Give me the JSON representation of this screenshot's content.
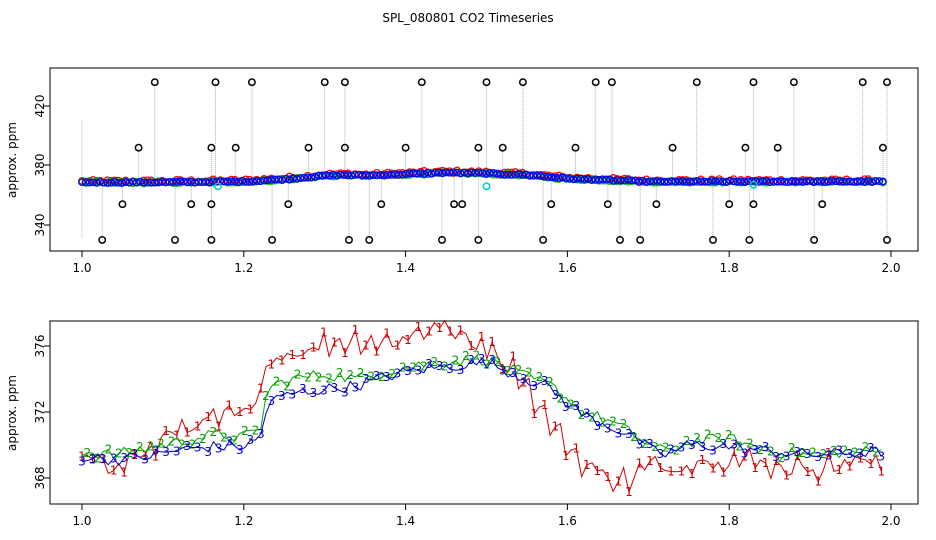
{
  "title": "SPL_080801  CO2 Timeseries",
  "chart_data": [
    {
      "type": "scatter",
      "panel": "top",
      "title": "",
      "xlabel": "",
      "ylabel": "approx. ppm",
      "xlim": [
        1.0,
        2.0
      ],
      "ylim": [
        330,
        436
      ],
      "xticks": [
        "1.0",
        "1.2",
        "1.4",
        "1.6",
        "1.8",
        "2.0"
      ],
      "yticks": [
        "340",
        "380",
        "420"
      ],
      "colors": {
        "base": "#ff0000",
        "mid": "#00c000",
        "top": "#0000ff",
        "spike": "#000000",
        "vline": "#b0b0b0",
        "gap": "#00cccc"
      },
      "baseline": {
        "x": [
          1.0,
          1.1,
          1.2,
          1.25,
          1.3,
          1.33,
          1.35,
          1.4,
          1.45,
          1.5,
          1.52,
          1.55,
          1.6,
          1.65,
          1.7,
          1.75,
          1.8,
          1.85,
          1.9,
          1.95,
          1.99
        ],
        "y": [
          368.5,
          368.5,
          369,
          370.5,
          373,
          373.5,
          373,
          374,
          375,
          374.5,
          374,
          373.5,
          371,
          370,
          369,
          369,
          369,
          369,
          369,
          369,
          369
        ]
      },
      "spikes_high": [
        1.09,
        1.165,
        1.21,
        1.3,
        1.325,
        1.42,
        1.5,
        1.545,
        1.635,
        1.655,
        1.76,
        1.83,
        1.88,
        1.965,
        1.995
      ],
      "spikes_mid": [
        1.07,
        1.16,
        1.19,
        1.28,
        1.325,
        1.4,
        1.49,
        1.52,
        1.61,
        1.73,
        1.82,
        1.86,
        1.99
      ],
      "spikes_low": [
        1.05,
        1.135,
        1.16,
        1.255,
        1.37,
        1.46,
        1.47,
        1.58,
        1.65,
        1.71,
        1.8,
        1.83,
        1.915
      ],
      "spikes_bottom": [
        1.025,
        1.115,
        1.16,
        1.235,
        1.33,
        1.355,
        1.445,
        1.49,
        1.57,
        1.665,
        1.69,
        1.78,
        1.825,
        1.905,
        1.995
      ],
      "gap_points": [
        [
          1.168,
          366
        ],
        [
          1.5,
          366
        ],
        [
          1.83,
          367
        ]
      ]
    },
    {
      "type": "line",
      "panel": "bottom",
      "title": "",
      "xlabel": "",
      "ylabel": "approx. ppm",
      "xlim": [
        1.0,
        2.0
      ],
      "ylim": [
        366.8,
        377.7
      ],
      "xticks": [
        "1.0",
        "1.2",
        "1.4",
        "1.6",
        "1.8",
        "2.0"
      ],
      "yticks": [
        "368",
        "372",
        "376"
      ],
      "series": [
        {
          "name": "1",
          "color": "#cc0000",
          "x": [
            1.0,
            1.04,
            1.08,
            1.12,
            1.16,
            1.2,
            1.22,
            1.23,
            1.26,
            1.3,
            1.34,
            1.38,
            1.42,
            1.44,
            1.47,
            1.5,
            1.52,
            1.55,
            1.56,
            1.58,
            1.6,
            1.62,
            1.65,
            1.68,
            1.7,
            1.72,
            1.75,
            1.8,
            1.85,
            1.9,
            1.95,
            1.99
          ],
          "y": [
            369.0,
            368.9,
            369.5,
            371.0,
            371.5,
            371.8,
            372.5,
            375.4,
            375.6,
            376.1,
            376.4,
            376.2,
            376.9,
            377.4,
            376.4,
            376.1,
            375.2,
            373.8,
            372.6,
            371.2,
            370.0,
            368.8,
            368.1,
            367.8,
            368.9,
            368.4,
            369.0,
            369.2,
            368.8,
            368.6,
            368.9,
            369.0
          ]
        },
        {
          "name": "2",
          "color": "#00a000",
          "x": [
            1.0,
            1.04,
            1.08,
            1.12,
            1.16,
            1.2,
            1.22,
            1.23,
            1.26,
            1.3,
            1.34,
            1.38,
            1.42,
            1.46,
            1.5,
            1.52,
            1.55,
            1.58,
            1.6,
            1.62,
            1.65,
            1.68,
            1.7,
            1.72,
            1.75,
            1.8,
            1.85,
            1.9,
            1.95,
            1.99
          ],
          "y": [
            369.6,
            369.4,
            369.8,
            370.2,
            370.6,
            370.5,
            370.9,
            373.5,
            374.0,
            374.3,
            374.0,
            374.5,
            374.9,
            375.1,
            375.2,
            374.8,
            374.1,
            373.6,
            372.8,
            372.0,
            371.5,
            370.7,
            370.0,
            369.6,
            370.2,
            370.4,
            369.6,
            369.4,
            369.6,
            369.6
          ]
        },
        {
          "name": "3",
          "color": "#0000cc",
          "x": [
            1.0,
            1.04,
            1.08,
            1.12,
            1.16,
            1.2,
            1.22,
            1.23,
            1.26,
            1.3,
            1.34,
            1.38,
            1.42,
            1.46,
            1.5,
            1.52,
            1.55,
            1.58,
            1.6,
            1.62,
            1.65,
            1.68,
            1.7,
            1.72,
            1.75,
            1.8,
            1.85,
            1.9,
            1.95,
            1.99
          ],
          "y": [
            369.3,
            369.1,
            369.3,
            369.7,
            369.9,
            369.9,
            370.4,
            372.6,
            373.1,
            373.4,
            373.6,
            374.2,
            374.6,
            374.8,
            375.0,
            374.6,
            374.0,
            373.4,
            372.5,
            371.8,
            371.2,
            370.5,
            369.8,
            369.4,
            370.0,
            369.9,
            369.6,
            369.4,
            369.5,
            369.6
          ]
        }
      ]
    }
  ]
}
